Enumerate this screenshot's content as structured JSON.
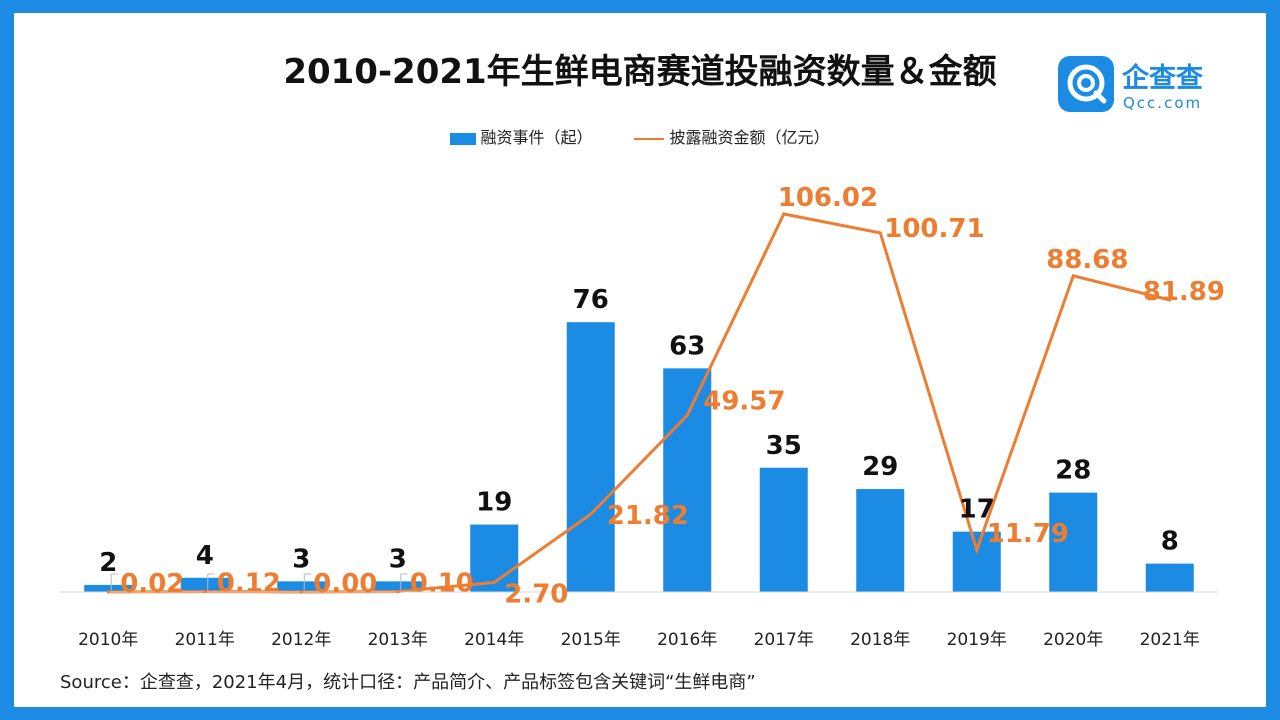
{
  "title": "2010-2021年生鲜电商赛道投融资数量＆金额",
  "logo": {
    "icon": "qcc-logo-icon",
    "name": "企查查",
    "domain": "Qcc.com"
  },
  "legend": {
    "bar": "融资事件（起）",
    "line": "披露融资金额（亿元）"
  },
  "colors": {
    "bar": "#1b8be3",
    "line": "#ed7d31",
    "frame": "#1b8be3"
  },
  "chart_data": {
    "type": "bar+line",
    "categories": [
      "2010年",
      "2011年",
      "2012年",
      "2013年",
      "2014年",
      "2015年",
      "2016年",
      "2017年",
      "2018年",
      "2019年",
      "2020年",
      "2021年"
    ],
    "series": [
      {
        "name": "融资事件（起）",
        "type": "bar",
        "values": [
          2,
          4,
          3,
          3,
          19,
          76,
          63,
          35,
          29,
          17,
          28,
          8
        ],
        "labels": [
          "2",
          "4",
          "3",
          "3",
          "19",
          "76",
          "63",
          "35",
          "29",
          "17",
          "28",
          "8"
        ]
      },
      {
        "name": "披露融资金额（亿元）",
        "type": "line",
        "values": [
          0.02,
          0.12,
          0.0,
          0.1,
          2.7,
          21.82,
          49.57,
          106.02,
          100.71,
          11.79,
          88.68,
          81.89
        ],
        "labels": [
          "0.02",
          "0.12",
          "0.00",
          "0.10",
          "2.70",
          "21.82",
          "49.57",
          "106.02",
          "100.71",
          "11.79",
          "88.68",
          "81.89"
        ]
      }
    ],
    "bar_ylim": [
      0,
      100
    ],
    "line_ylim": [
      0,
      112
    ]
  },
  "source": "Source：企查查，2021年4月，统计口径：产品简介、产品标签包含关键词“生鲜电商”"
}
